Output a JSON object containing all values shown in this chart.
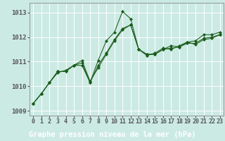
{
  "xlabel": "Graphe pression niveau de la mer (hPa)",
  "xlim": [
    -0.5,
    23.5
  ],
  "ylim": [
    1008.8,
    1013.4
  ],
  "yticks": [
    1009,
    1010,
    1011,
    1012,
    1013
  ],
  "xticks": [
    0,
    1,
    2,
    3,
    4,
    5,
    6,
    7,
    8,
    9,
    10,
    11,
    12,
    13,
    14,
    15,
    16,
    17,
    18,
    19,
    20,
    21,
    22,
    23
  ],
  "bg_color": "#cceae4",
  "bottom_bar_color": "#2d6a2d",
  "grid_color": "#ffffff",
  "line_color": "#1a5c1a",
  "marker_color": "#1a5c1a",
  "series": [
    [
      1009.3,
      1009.7,
      1010.15,
      1010.6,
      1010.6,
      1010.85,
      1010.85,
      1010.15,
      1011.05,
      1011.85,
      1012.2,
      1013.05,
      1012.75,
      1011.5,
      1011.3,
      1011.3,
      1011.5,
      1011.65,
      1011.6,
      1011.8,
      1011.85,
      1012.1,
      1012.1,
      1012.2
    ],
    [
      1009.3,
      1009.7,
      1010.15,
      1010.6,
      1010.6,
      1010.85,
      1011.05,
      1010.2,
      1010.75,
      1011.3,
      1011.85,
      1012.3,
      1012.5,
      1011.5,
      1011.25,
      1011.35,
      1011.55,
      1011.5,
      1011.65,
      1011.8,
      1011.7,
      1011.9,
      1011.95,
      1012.1
    ],
    [
      1009.3,
      1009.7,
      1010.15,
      1010.55,
      1010.65,
      1010.85,
      1010.95,
      1010.15,
      1010.85,
      1011.35,
      1011.9,
      1012.35,
      1012.5,
      1011.5,
      1011.3,
      1011.3,
      1011.5,
      1011.55,
      1011.6,
      1011.75,
      1011.75,
      1011.95,
      1012.0,
      1012.1
    ]
  ],
  "tick_fontsize": 6.5,
  "label_fontsize": 7.5
}
